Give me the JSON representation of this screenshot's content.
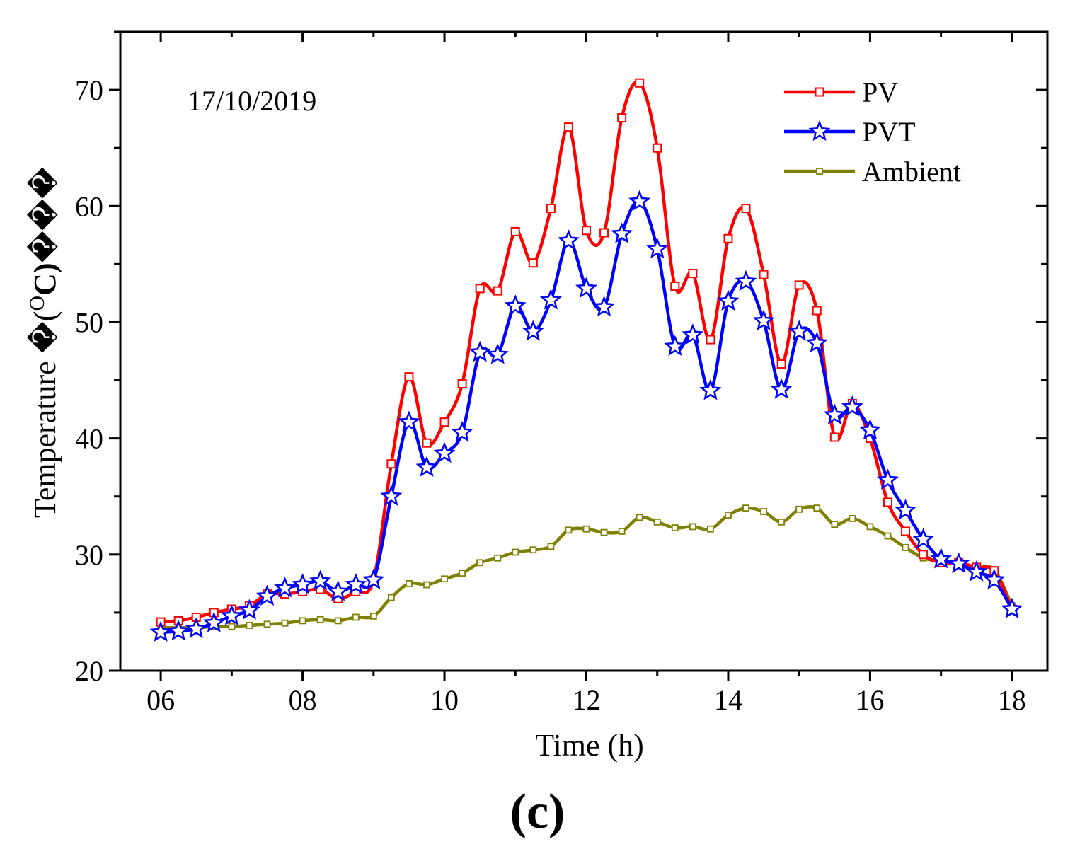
{
  "chart_data": {
    "type": "line",
    "annotation": "17/10/2019",
    "xlabel": "Time (h)",
    "ylabel": "Temperature �(",
    "ylabel_sup": "O",
    "ylabel_unit": "C)",
    "ylabel_tail": "���",
    "caption_open": "(",
    "caption_letter": "c",
    "caption_close": ")",
    "xlim": [
      5.43,
      18.5
    ],
    "ylim": [
      20,
      75
    ],
    "x_ticks": [
      6,
      8,
      10,
      12,
      14,
      16,
      18
    ],
    "x_tick_labels": [
      "06",
      "08",
      "10",
      "12",
      "14",
      "16",
      "18"
    ],
    "y_ticks": [
      20,
      30,
      40,
      50,
      60,
      70
    ],
    "y_tick_labels": [
      "20",
      "30",
      "40",
      "50",
      "60",
      "70"
    ],
    "legend_position": "top-right",
    "x": [
      6,
      6.25,
      6.5,
      6.75,
      7,
      7.25,
      7.5,
      7.75,
      8,
      8.25,
      8.5,
      8.75,
      9,
      9.25,
      9.5,
      9.75,
      10,
      10.25,
      10.5,
      10.75,
      11,
      11.25,
      11.5,
      11.75,
      12,
      12.25,
      12.5,
      12.75,
      13,
      13.25,
      13.5,
      13.75,
      14,
      14.25,
      14.5,
      14.75,
      15,
      15.25,
      15.5,
      15.75,
      16,
      16.25,
      16.5,
      16.75,
      17,
      17.25,
      17.5,
      17.75,
      18
    ],
    "series": [
      {
        "name": "PV",
        "color": "#ff0000",
        "marker": "square",
        "values": [
          24.2,
          24.3,
          24.6,
          25.0,
          25.3,
          25.6,
          26.6,
          26.6,
          26.8,
          27.0,
          26.2,
          26.8,
          27.8,
          37.8,
          45.3,
          39.6,
          41.4,
          44.7,
          52.9,
          52.7,
          57.8,
          55.1,
          59.8,
          66.8,
          57.9,
          57.7,
          67.6,
          70.6,
          65.0,
          53.1,
          54.2,
          48.5,
          57.2,
          59.8,
          54.1,
          46.4,
          53.2,
          51.0,
          40.1,
          43.0,
          40.0,
          34.5,
          32.0,
          30.0,
          29.3,
          29.3,
          28.9,
          28.6,
          25.3
        ]
      },
      {
        "name": "PVT",
        "color": "#0000ff",
        "marker": "star",
        "values": [
          23.3,
          23.4,
          23.6,
          24.1,
          24.7,
          25.2,
          26.4,
          27.1,
          27.4,
          27.7,
          26.8,
          27.4,
          27.8,
          35.0,
          41.4,
          37.5,
          38.7,
          40.5,
          47.4,
          47.2,
          51.4,
          49.2,
          51.9,
          57.0,
          52.9,
          51.3,
          57.6,
          60.4,
          56.3,
          47.9,
          48.9,
          44.1,
          51.8,
          53.5,
          50.1,
          44.2,
          49.2,
          48.2,
          42.0,
          42.7,
          40.7,
          36.4,
          33.8,
          31.3,
          29.6,
          29.2,
          28.5,
          27.8,
          25.3
        ]
      },
      {
        "name": "Ambient",
        "color": "#808000",
        "marker": "square",
        "values": [
          23.7,
          23.7,
          23.7,
          23.8,
          23.8,
          23.9,
          24.0,
          24.1,
          24.3,
          24.4,
          24.3,
          24.6,
          24.7,
          26.3,
          27.5,
          27.4,
          27.9,
          28.4,
          29.3,
          29.7,
          30.2,
          30.4,
          30.7,
          32.1,
          32.2,
          31.9,
          32.0,
          33.2,
          32.8,
          32.3,
          32.4,
          32.2,
          33.4,
          34.0,
          33.7,
          32.8,
          33.9,
          34.0,
          32.6,
          33.1,
          32.4,
          31.6,
          30.6,
          29.7,
          29.4,
          29.2,
          28.9,
          28.7,
          25.6
        ]
      }
    ]
  }
}
